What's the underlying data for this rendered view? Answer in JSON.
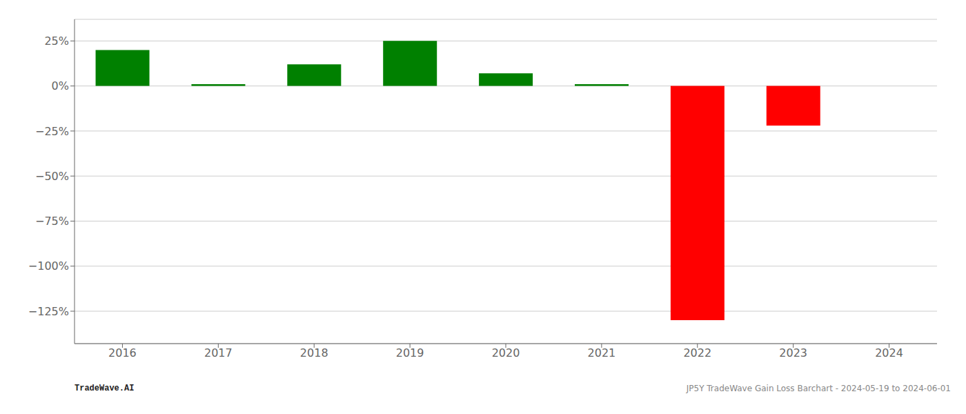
{
  "chart_data": {
    "type": "bar",
    "categories": [
      "2016",
      "2017",
      "2018",
      "2019",
      "2020",
      "2021",
      "2022",
      "2023",
      "2024"
    ],
    "values": [
      0.2,
      0.01,
      0.12,
      0.25,
      0.07,
      0.01,
      -1.3,
      -0.22,
      0.0
    ],
    "colors": [
      "#008000",
      "#008000",
      "#008000",
      "#008000",
      "#008000",
      "#008000",
      "#ff0000",
      "#ff0000",
      "#008000"
    ],
    "ylim": [
      -1.43,
      0.37
    ],
    "yticks": [
      {
        "value": 0.25,
        "label": "25%"
      },
      {
        "value": 0.0,
        "label": "0%"
      },
      {
        "value": -0.25,
        "label": "−25%"
      },
      {
        "value": -0.5,
        "label": "−50%"
      },
      {
        "value": -0.75,
        "label": "−75%"
      },
      {
        "value": -1.0,
        "label": "−100%"
      },
      {
        "value": -1.25,
        "label": "−125%"
      }
    ],
    "grid": true,
    "annotations": [
      "TradeWave.AI",
      "JP5Y TradeWave Gain Loss Barchart - 2024-05-19 to 2024-06-01"
    ]
  }
}
